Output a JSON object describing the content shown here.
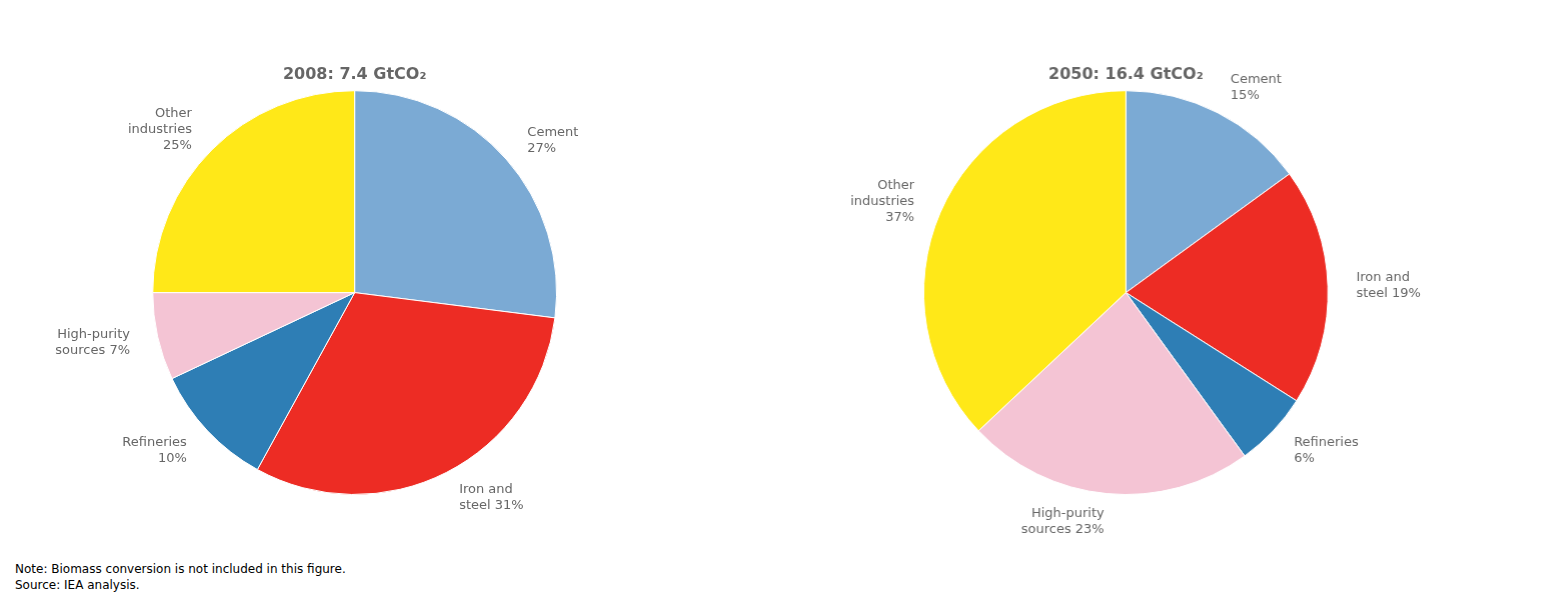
{
  "chart_data": [
    {
      "type": "pie",
      "title": "2008: 7.4 GtCO₂",
      "categories": [
        "Cement\n27%",
        "Iron and\nsteel 31%",
        "Refineries\n10%",
        "High-purity\nsources 7%",
        "Other\nindustries\n25%"
      ],
      "values": [
        27,
        31,
        10,
        7,
        25
      ],
      "colors": [
        "#7BAAD4",
        "#ED2C24",
        "#2E7EB5",
        "#F4C4D4",
        "#FFE818"
      ]
    },
    {
      "type": "pie",
      "title": "2050: 16.4 GtCO₂",
      "categories": [
        "Cement\n15%",
        "Iron and\nsteel 19%",
        "Refineries\n6%",
        "High-purity\nsources 23%",
        "Other\nindustries\n37%"
      ],
      "values": [
        15,
        19,
        6,
        23,
        37
      ],
      "colors": [
        "#7BAAD4",
        "#ED2C24",
        "#2E7EB5",
        "#F4C4D4",
        "#FFE818"
      ]
    }
  ],
  "note": "Note: Biomass conversion is not included in this figure.\nSource: IEA analysis."
}
